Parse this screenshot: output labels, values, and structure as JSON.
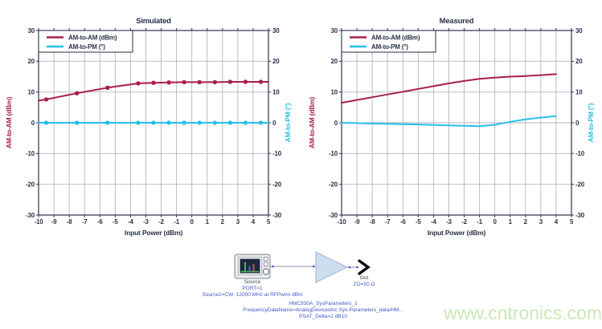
{
  "watermark": {
    "text": "www.cntronics.com",
    "color": "#cbe7b6"
  },
  "colors": {
    "crimson": "#a81f47",
    "cyan": "#29bfe8",
    "navy": "#29324a",
    "grid": "#b2b6be",
    "schematic_blue": "#4156c5",
    "schematic_gray": "#3f444c",
    "amp_fill": "#cddeee",
    "amp_border": "#9db7d3"
  },
  "chart_data": [
    {
      "id": "simulated",
      "type": "line",
      "title": "Simulated",
      "xlabel": "Input Power (dBm)",
      "ylabel_left": "AM-to-AM (dBm)",
      "ylabel_right": "AM-to-PM (°)",
      "xlim": [
        -10,
        5
      ],
      "ylim": [
        -30,
        30
      ],
      "xticks": [
        -10,
        -9,
        -8,
        -7,
        -6,
        -5,
        -4,
        -3,
        -2,
        -1,
        0,
        1,
        2,
        3,
        4,
        5
      ],
      "yticks": [
        -30,
        -20,
        -10,
        0,
        10,
        20,
        30
      ],
      "grid": true,
      "legend_position": "top-left",
      "legend": [
        "AM-to-AM (dBm)",
        "AM-to-PM (°)"
      ],
      "series": [
        {
          "name": "AM-to-AM (dBm)",
          "axis": "left",
          "color": "#a81f47",
          "x": [
            -10,
            -9.5,
            -7.5,
            -5.5,
            -3.5,
            -2.5,
            -1.5,
            -0.5,
            0.5,
            1.5,
            2.5,
            3.5,
            4.5,
            5
          ],
          "y": [
            7.2,
            7.6,
            9.6,
            11.4,
            12.8,
            13.0,
            13.1,
            13.2,
            13.2,
            13.2,
            13.3,
            13.3,
            13.3,
            13.3
          ],
          "markers": [
            [
              -9.5,
              7.6
            ],
            [
              -7.5,
              9.6
            ],
            [
              -5.5,
              11.4
            ],
            [
              -3.5,
              12.8
            ],
            [
              -2.5,
              13.0
            ],
            [
              -1.5,
              13.1
            ],
            [
              -0.5,
              13.2
            ],
            [
              0.5,
              13.2
            ],
            [
              1.5,
              13.2
            ],
            [
              2.5,
              13.3
            ],
            [
              3.5,
              13.3
            ],
            [
              4.5,
              13.3
            ]
          ]
        },
        {
          "name": "AM-to-PM (°)",
          "axis": "right",
          "color": "#29bfe8",
          "x": [
            -10,
            5
          ],
          "y": [
            0,
            0
          ],
          "markers": [
            [
              -9.5,
              0
            ],
            [
              -7.5,
              0
            ],
            [
              -5.5,
              0
            ],
            [
              -3.5,
              0
            ],
            [
              -2.5,
              0
            ],
            [
              -1.5,
              0
            ],
            [
              -0.5,
              0
            ],
            [
              0.5,
              0
            ],
            [
              1.5,
              0
            ],
            [
              2.5,
              0
            ],
            [
              3.5,
              0
            ],
            [
              4.5,
              0
            ]
          ]
        }
      ]
    },
    {
      "id": "measured",
      "type": "line",
      "title": "Measured",
      "xlabel": "Input Power (dBm)",
      "ylabel_left": "AM-to-AM (dBm)",
      "ylabel_right": "AM-to-PM (°)",
      "xlim": [
        -10,
        5
      ],
      "ylim": [
        -30,
        30
      ],
      "xticks": [
        -10,
        -9,
        -8,
        -7,
        -6,
        -5,
        -4,
        -3,
        -2,
        -1,
        0,
        1,
        2,
        3,
        4,
        5
      ],
      "yticks": [
        -30,
        -20,
        -10,
        0,
        10,
        20,
        30
      ],
      "grid": true,
      "legend_position": "top-left",
      "legend": [
        "AM-to-AM (dBm)",
        "AM-to-PM (°)"
      ],
      "series": [
        {
          "name": "AM-to-AM (dBm)",
          "axis": "left",
          "color": "#a81f47",
          "x": [
            -10,
            -9,
            -8,
            -7,
            -6,
            -5,
            -4,
            -3,
            -2,
            -1,
            0,
            1,
            2,
            3,
            4
          ],
          "y": [
            6.5,
            7.4,
            8.3,
            9.2,
            10.1,
            11.0,
            11.9,
            12.8,
            13.6,
            14.3,
            14.7,
            15.0,
            15.2,
            15.5,
            15.8
          ],
          "markers": []
        },
        {
          "name": "AM-to-PM (°)",
          "axis": "right",
          "color": "#29bfe8",
          "x": [
            -10,
            -9,
            -8,
            -7,
            -6,
            -5,
            -4,
            -3,
            -2,
            -1,
            0,
            1,
            2,
            3,
            4
          ],
          "y": [
            0,
            -0.1,
            -0.25,
            -0.35,
            -0.45,
            -0.55,
            -0.7,
            -0.85,
            -1.0,
            -1.1,
            -0.65,
            0.3,
            1.1,
            1.7,
            2.2
          ],
          "markers": []
        }
      ]
    }
  ],
  "schematic": {
    "source": {
      "label": "Source",
      "param1": "PORT=1",
      "param2": "Source1=CW: 12000 MHz at RFPwrIn dBm"
    },
    "amplifier": {
      "param1": "HMC930A_SysParameters_1",
      "param2": "FrequencyDataName=AnalogDevicesInc Sys-Parameters_data/HM...",
      "param3": "PSAT_Delta=2 dB10"
    },
    "output": {
      "label": "Out",
      "param": "ZO=50 Ω"
    }
  }
}
